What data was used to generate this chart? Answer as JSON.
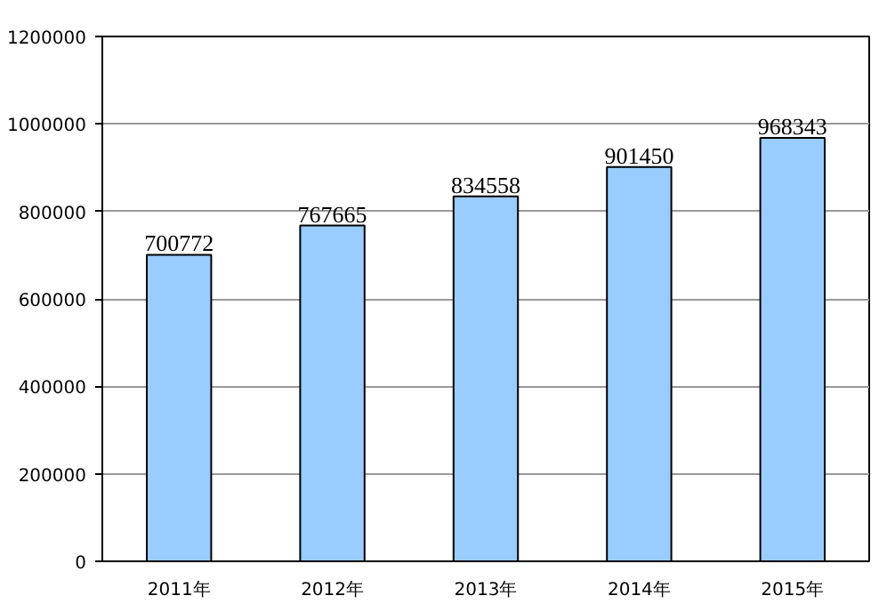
{
  "chart_data": {
    "type": "bar",
    "categories": [
      "2011年",
      "2012年",
      "2013年",
      "2014年",
      "2015年"
    ],
    "values": [
      700772,
      767665,
      834558,
      901450,
      968343
    ],
    "color": "#99ccff",
    "ylim": [
      0,
      1200000
    ],
    "yticks": [
      0,
      200000,
      400000,
      600000,
      800000,
      1000000,
      1200000
    ],
    "grid": "y",
    "data_labels": true
  }
}
